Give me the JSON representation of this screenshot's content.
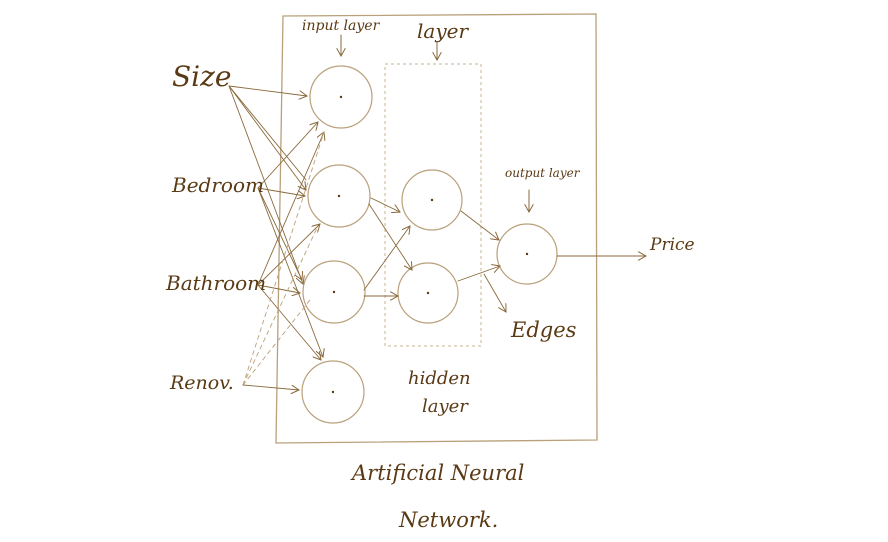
{
  "labels": {
    "input_layer": "input layer",
    "hidden_layer_top": "layer",
    "hidden_layer_bottom_line1": "hidden",
    "hidden_layer_bottom_line2": "layer",
    "output_layer": "output layer",
    "edges": "Edges",
    "price": "Price",
    "title_line1": "Artificial Neural",
    "title_line2": "Network."
  },
  "inputs": [
    "Size",
    "Bedroom",
    "Bathroom",
    "Renov."
  ],
  "colors": {
    "ink": "#8a6a3c",
    "text": "#5a3a14",
    "light": "#b9a07a"
  }
}
